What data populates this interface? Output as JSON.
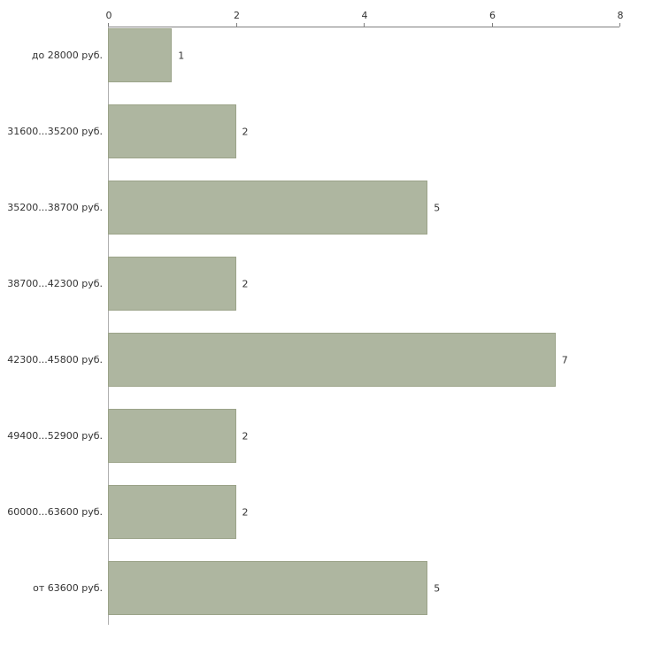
{
  "chart_data": {
    "type": "bar",
    "orientation": "horizontal",
    "title": "",
    "xlabel": "",
    "ylabel": "",
    "categories": [
      "до 28000 руб.",
      "31600...35200 руб.",
      "35200...38700 руб.",
      "38700...42300 руб.",
      "42300...45800 руб.",
      "49400...52900 руб.",
      "60000...63600 руб.",
      "от 63600 руб."
    ],
    "values": [
      1,
      2,
      5,
      2,
      7,
      2,
      2,
      5
    ],
    "xlim": [
      0,
      8
    ],
    "xticks": [
      "0",
      "2",
      "4",
      "6",
      "8"
    ],
    "grid": false,
    "legend": "none",
    "bar_color": "#aeb6a0",
    "bar_border_color": "#9ba389",
    "axis_color": "#808080",
    "text_color": "#333333"
  }
}
